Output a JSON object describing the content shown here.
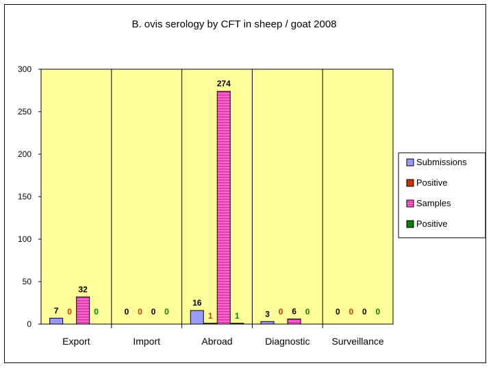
{
  "chart_data": {
    "type": "bar",
    "title": "B. ovis serology by CFT in sheep / goat 2008",
    "xlabel": "",
    "ylabel": "",
    "ylim": [
      0,
      300
    ],
    "yticks": [
      0,
      50,
      100,
      150,
      200,
      250,
      300
    ],
    "categories": [
      "Export",
      "Import",
      "Abroad",
      "Diagnostic",
      "Surveillance"
    ],
    "series": [
      {
        "name": "Submissions",
        "values": [
          7,
          0,
          16,
          3,
          0
        ],
        "color": "#9999ff",
        "label_color": "#000000"
      },
      {
        "name": "Positive",
        "values": [
          0,
          0,
          1,
          0,
          0
        ],
        "color": "#cc3300",
        "label_color": "#cc3300"
      },
      {
        "name": "Samples",
        "values": [
          32,
          0,
          274,
          6,
          0
        ],
        "color": "#ff66cc",
        "label_color": "#000000",
        "pattern": "horizontal-stripes"
      },
      {
        "name": "Positive",
        "values": [
          0,
          0,
          1,
          0,
          0
        ],
        "color": "#008000",
        "label_color": "#008000"
      }
    ],
    "plot_background": "#ffff99",
    "grid": false,
    "legend_position": "right"
  }
}
